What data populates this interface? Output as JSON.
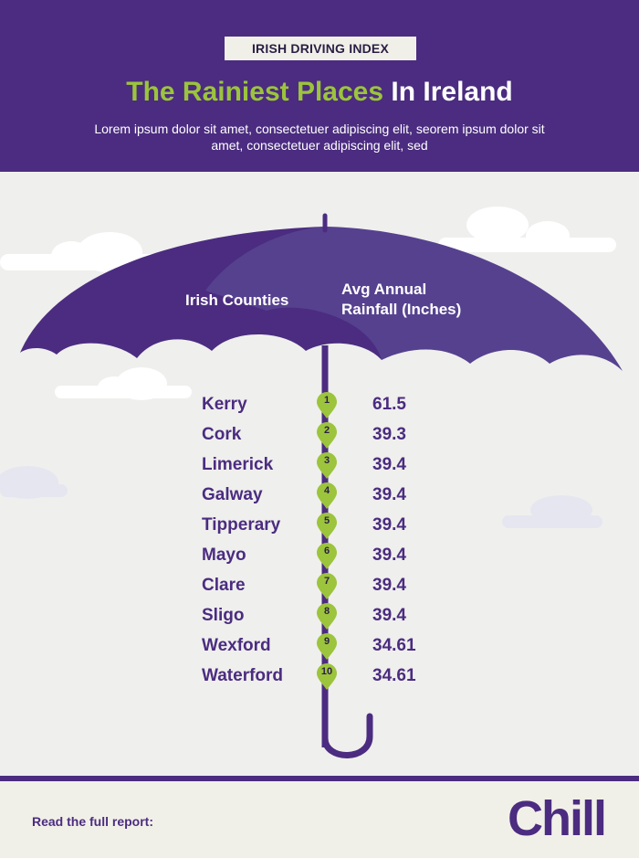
{
  "header": {
    "badge": "IRISH DRIVING INDEX",
    "title_green": "The Rainiest Places",
    "title_white": "In Ireland",
    "subtitle": "Lorem ipsum dolor sit amet, consectetuer adipiscing elit, seorem ipsum dolor sit amet, consectetuer adipiscing elit, sed"
  },
  "table": {
    "col_county": "Irish Counties",
    "col_rain_line1": "Avg Annual",
    "col_rain_line2": "Rainfall (Inches)",
    "rows": [
      {
        "rank": "1",
        "county": "Kerry",
        "rainfall": "61.5"
      },
      {
        "rank": "2",
        "county": "Cork",
        "rainfall": "39.3"
      },
      {
        "rank": "3",
        "county": "Limerick",
        "rainfall": "39.4"
      },
      {
        "rank": "4",
        "county": "Galway",
        "rainfall": "39.4"
      },
      {
        "rank": "5",
        "county": "Tipperary",
        "rainfall": "39.4"
      },
      {
        "rank": "6",
        "county": "Mayo",
        "rainfall": "39.4"
      },
      {
        "rank": "7",
        "county": "Clare",
        "rainfall": "39.4"
      },
      {
        "rank": "8",
        "county": "Sligo",
        "rainfall": "39.4"
      },
      {
        "rank": "9",
        "county": "Wexford",
        "rainfall": "34.61"
      },
      {
        "rank": "10",
        "county": "Waterford",
        "rainfall": "34.61"
      }
    ]
  },
  "footer": {
    "read_label": "Read the full report:",
    "logo": "Chill"
  },
  "colors": {
    "purple": "#4b2c80",
    "umbrella_light": "#56418f",
    "green": "#9cc43c",
    "background": "#efefed"
  }
}
